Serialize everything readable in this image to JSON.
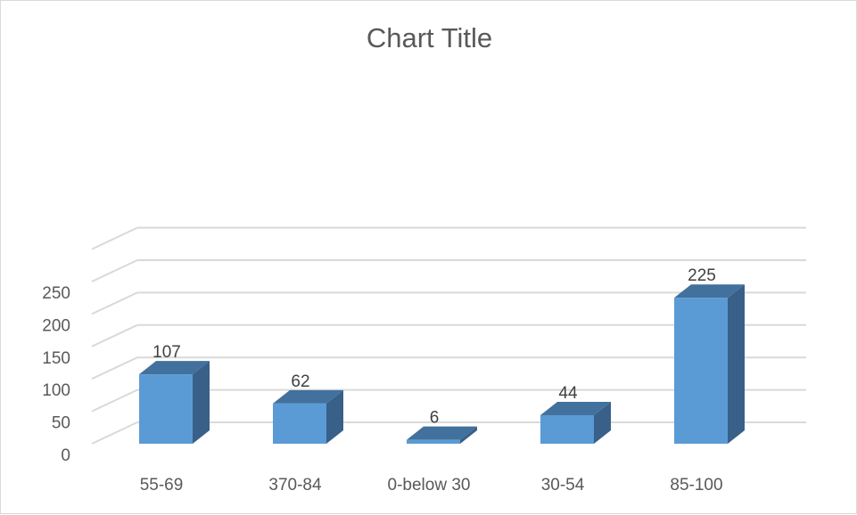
{
  "chart_data": {
    "type": "bar",
    "title": "Chart Title",
    "categories": [
      "55-69",
      "370-84",
      "0-below 30",
      "30-54",
      "85-100"
    ],
    "values": [
      107,
      62,
      6,
      44,
      225
    ],
    "yticks": [
      "0",
      "50",
      "100",
      "150",
      "200",
      "250"
    ],
    "ylim": [
      0,
      250
    ],
    "grid": true,
    "legend": "none",
    "style": "3d-column",
    "colors": {
      "front": "#5b9bd5",
      "top": "#41719c",
      "side": "#386088",
      "grid": "#d9d9d9",
      "text": "#595959"
    }
  }
}
